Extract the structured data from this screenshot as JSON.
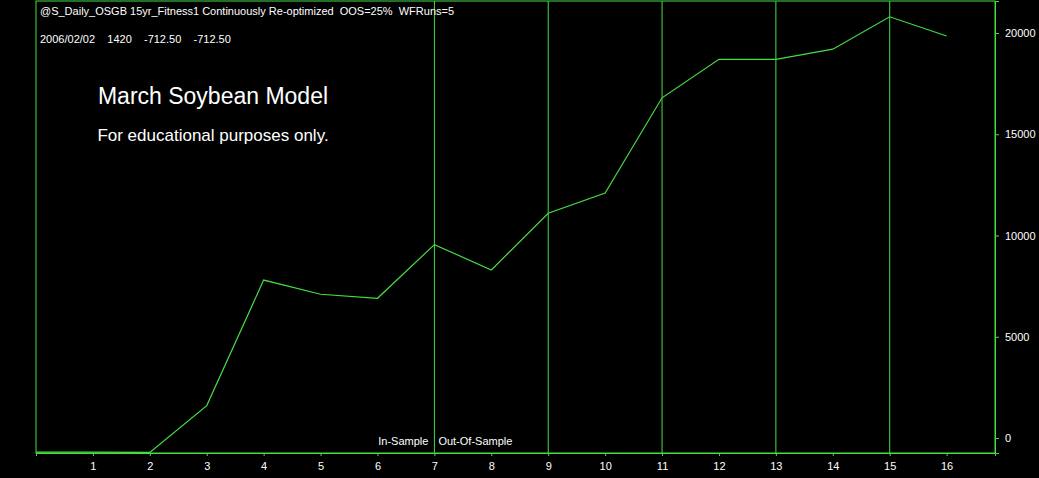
{
  "chart_data": {
    "type": "line",
    "header": [
      "@S_Daily_OSGB 15yr_Fitness1 Continuously Re-optimized  OOS=25%  WFRuns=5",
      "2006/02/02    1420    -712.50    -712.50"
    ],
    "title": "March Soybean Model",
    "subtitle": "For educational purposes only.",
    "annotations": [
      "In-Sample",
      "Out-Of-Sample"
    ],
    "x": [
      0,
      1,
      2,
      3,
      4,
      5,
      6,
      7,
      8,
      9,
      10,
      11,
      12,
      13,
      14,
      15,
      16
    ],
    "values": [
      -700,
      -700,
      -712.5,
      1600,
      7800,
      7100,
      6900,
      9550,
      8300,
      11100,
      12100,
      16800,
      18700,
      18700,
      19200,
      20800,
      19850
    ],
    "color": "#44dd44",
    "xlim": [
      0,
      16.85
    ],
    "xticks": [
      1,
      2,
      3,
      4,
      5,
      6,
      7,
      8,
      9,
      10,
      11,
      12,
      13,
      14,
      15,
      16
    ],
    "ylim": [
      -740,
      21580
    ],
    "yticks": [
      0,
      5000,
      10000,
      15000,
      20000
    ],
    "vlines": [
      7,
      9,
      11,
      13,
      15
    ]
  }
}
